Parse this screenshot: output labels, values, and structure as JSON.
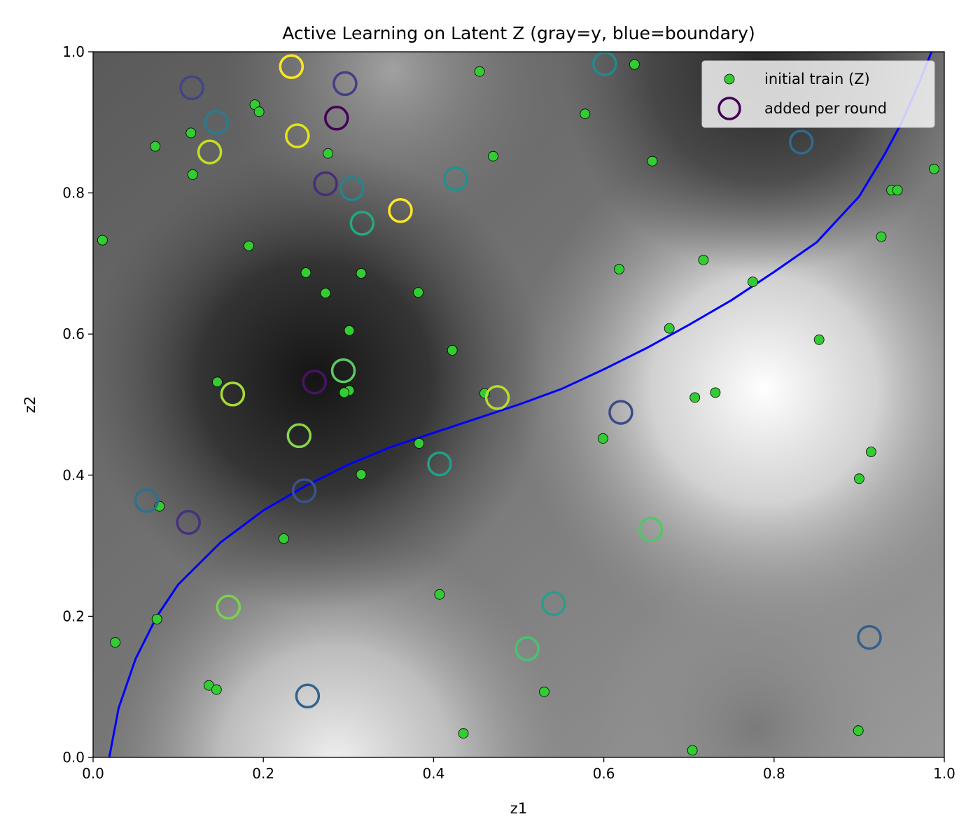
{
  "chart_data": {
    "type": "scatter",
    "title": "Active Learning on Latent Z (gray=y, blue=boundary)",
    "xlabel": "z1",
    "ylabel": "z2",
    "xlim": [
      0.0,
      1.0
    ],
    "ylim": [
      0.0,
      1.0
    ],
    "xticks": [
      "0.0",
      "0.2",
      "0.4",
      "0.6",
      "0.8",
      "1.0"
    ],
    "yticks": [
      "0.0",
      "0.2",
      "0.4",
      "0.6",
      "0.8",
      "1.0"
    ],
    "grid": false,
    "legend": {
      "placement": "top-right",
      "entries": [
        "initial train (Z)",
        "added per round"
      ]
    },
    "colors": {
      "initial_fill": "#33cc33",
      "boundary": "#0000ff",
      "rounds_colormap": "viridis"
    },
    "background_field": {
      "description_values": "gray intensity field y over latent space",
      "peaks": [
        {
          "z1": 0.79,
          "z2": 0.52,
          "level": "high"
        },
        {
          "z1": 0.32,
          "z2": 0.02,
          "level": "high"
        },
        {
          "z1": 0.26,
          "z2": 0.54,
          "level": "low"
        },
        {
          "z1": 0.85,
          "z2": 1.0,
          "level": "low"
        },
        {
          "z1": 0.78,
          "z2": 0.04,
          "level": "low"
        }
      ]
    },
    "boundary_curve": {
      "name": "boundary",
      "x": [
        0.019,
        0.03,
        0.05,
        0.075,
        0.1,
        0.15,
        0.2,
        0.25,
        0.3,
        0.35,
        0.4,
        0.45,
        0.5,
        0.55,
        0.6,
        0.65,
        0.7,
        0.75,
        0.8,
        0.85,
        0.9,
        0.93,
        0.95,
        0.97,
        0.985
      ],
      "y": [
        0.0,
        0.07,
        0.14,
        0.2,
        0.245,
        0.305,
        0.35,
        0.385,
        0.415,
        0.44,
        0.46,
        0.48,
        0.5,
        0.522,
        0.55,
        0.58,
        0.613,
        0.648,
        0.688,
        0.73,
        0.795,
        0.855,
        0.9,
        0.955,
        1.0
      ]
    },
    "initial_train": {
      "name": "initial train (Z)",
      "x": [
        0.454,
        0.636,
        0.19,
        0.195,
        0.115,
        0.073,
        0.276,
        0.47,
        0.578,
        0.657,
        0.117,
        0.011,
        0.183,
        0.25,
        0.315,
        0.273,
        0.382,
        0.301,
        0.422,
        0.146,
        0.301,
        0.295,
        0.46,
        0.383,
        0.315,
        0.078,
        0.224,
        0.407,
        0.075,
        0.026,
        0.136,
        0.145,
        0.53,
        0.435,
        0.704,
        0.618,
        0.717,
        0.775,
        0.677,
        0.707,
        0.731,
        0.853,
        0.599,
        0.914,
        0.9,
        0.899,
        0.938,
        0.945,
        0.926,
        0.988
      ],
      "y": [
        0.972,
        0.982,
        0.925,
        0.915,
        0.885,
        0.866,
        0.856,
        0.852,
        0.912,
        0.845,
        0.826,
        0.733,
        0.725,
        0.687,
        0.686,
        0.658,
        0.659,
        0.605,
        0.577,
        0.532,
        0.52,
        0.517,
        0.516,
        0.445,
        0.401,
        0.356,
        0.31,
        0.231,
        0.196,
        0.163,
        0.102,
        0.096,
        0.093,
        0.034,
        0.01,
        0.692,
        0.705,
        0.674,
        0.608,
        0.51,
        0.517,
        0.592,
        0.452,
        0.433,
        0.395,
        0.038,
        0.804,
        0.804,
        0.738,
        0.834
      ]
    },
    "added_per_round": {
      "name": "added per round",
      "points": [
        {
          "x": 0.233,
          "y": 0.979,
          "color": "#fde725"
        },
        {
          "x": 0.24,
          "y": 0.881,
          "color": "#e2e418"
        },
        {
          "x": 0.361,
          "y": 0.775,
          "color": "#fde725"
        },
        {
          "x": 0.137,
          "y": 0.858,
          "color": "#c2df23"
        },
        {
          "x": 0.475,
          "y": 0.51,
          "color": "#b5de2b"
        },
        {
          "x": 0.164,
          "y": 0.515,
          "color": "#a5db36"
        },
        {
          "x": 0.242,
          "y": 0.456,
          "color": "#86d549"
        },
        {
          "x": 0.159,
          "y": 0.213,
          "color": "#7ad151"
        },
        {
          "x": 0.294,
          "y": 0.548,
          "color": "#5ec962"
        },
        {
          "x": 0.655,
          "y": 0.323,
          "color": "#54c568"
        },
        {
          "x": 0.51,
          "y": 0.154,
          "color": "#4ac16d"
        },
        {
          "x": 0.316,
          "y": 0.757,
          "color": "#22a884"
        },
        {
          "x": 0.541,
          "y": 0.218,
          "color": "#2a9d8a"
        },
        {
          "x": 0.407,
          "y": 0.416,
          "color": "#1fa187"
        },
        {
          "x": 0.426,
          "y": 0.82,
          "color": "#21918c"
        },
        {
          "x": 0.601,
          "y": 0.983,
          "color": "#23898e"
        },
        {
          "x": 0.304,
          "y": 0.806,
          "color": "#25848e"
        },
        {
          "x": 0.145,
          "y": 0.9,
          "color": "#287c8e"
        },
        {
          "x": 0.063,
          "y": 0.364,
          "color": "#2c728e"
        },
        {
          "x": 0.832,
          "y": 0.872,
          "color": "#2f6c8e"
        },
        {
          "x": 0.252,
          "y": 0.087,
          "color": "#33638d"
        },
        {
          "x": 0.912,
          "y": 0.17,
          "color": "#355f8d"
        },
        {
          "x": 0.248,
          "y": 0.378,
          "color": "#3b528b"
        },
        {
          "x": 0.116,
          "y": 0.949,
          "color": "#414487"
        },
        {
          "x": 0.62,
          "y": 0.489,
          "color": "#3e4989"
        },
        {
          "x": 0.296,
          "y": 0.955,
          "color": "#433e85"
        },
        {
          "x": 0.273,
          "y": 0.813,
          "color": "#472d7b"
        },
        {
          "x": 0.112,
          "y": 0.333,
          "color": "#46307e"
        },
        {
          "x": 0.286,
          "y": 0.906,
          "color": "#440154"
        },
        {
          "x": 0.26,
          "y": 0.532,
          "color": "#471365"
        }
      ]
    }
  }
}
